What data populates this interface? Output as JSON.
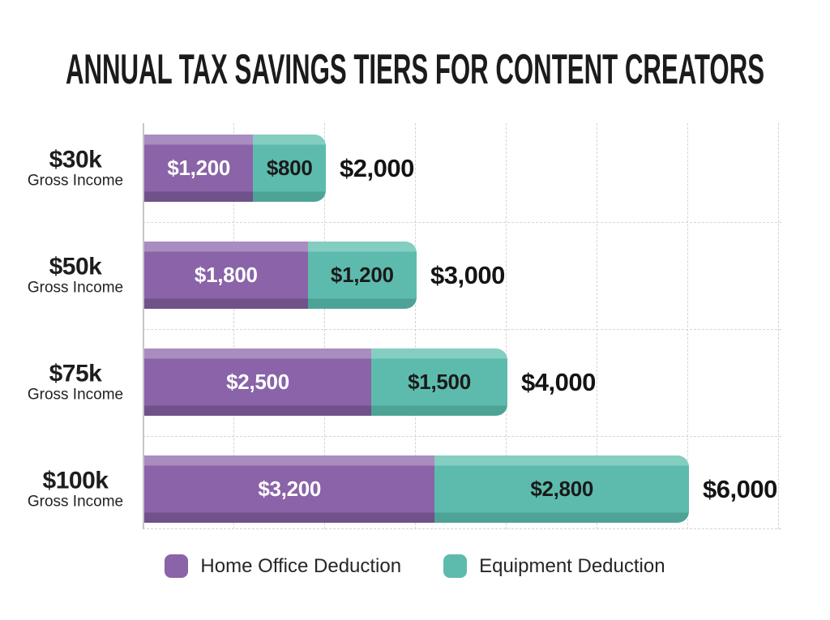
{
  "title": "ANNUAL TAX SAVINGS TIERS FOR CONTENT CREATORS",
  "chart_data": {
    "type": "bar",
    "orientation": "horizontal",
    "stacked": true,
    "title": "ANNUAL TAX SAVINGS TIERS FOR CONTENT CREATORS",
    "categories": [
      "$30k",
      "$50k",
      "$75k",
      "$100k"
    ],
    "category_sublabel": "Gross Income",
    "series": [
      {
        "name": "Home Office Deduction",
        "color": "#8a63a8",
        "color_light": "#a98cc0",
        "color_dark": "#70518a",
        "label_color": "#ffffff",
        "values": [
          1200,
          1800,
          2500,
          3200
        ],
        "labels": [
          "$1,200",
          "$1,800",
          "$2,500",
          "$3,200"
        ]
      },
      {
        "name": "Equipment Deduction",
        "color": "#5dbbad",
        "color_light": "#84cec1",
        "color_dark": "#4da396",
        "label_color": "#1a1a1a",
        "values": [
          800,
          1200,
          1500,
          2800
        ],
        "labels": [
          "$800",
          "$1,200",
          "$1,500",
          "$2,800"
        ]
      }
    ],
    "totals": [
      2000,
      3000,
      4000,
      6000
    ],
    "total_labels": [
      "$2,000",
      "$3,000",
      "$4,000",
      "$6,000"
    ],
    "xlim": [
      0,
      7000
    ],
    "grid_interval": 1000,
    "grid": "dashed",
    "legend_position": "bottom"
  },
  "legend": {
    "items": [
      {
        "label": "Home Office Deduction",
        "color": "#8a63a8"
      },
      {
        "label": "Equipment Deduction",
        "color": "#5dbbad"
      }
    ]
  }
}
